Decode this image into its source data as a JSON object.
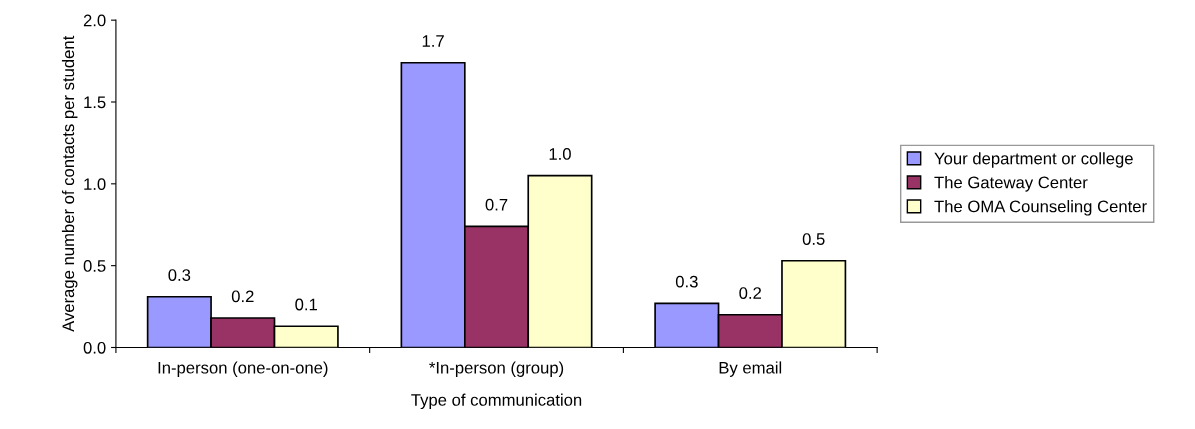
{
  "chart_data": {
    "type": "bar",
    "xlabel": "Type of communication",
    "ylabel": "Average number of contacts per student",
    "categories": [
      "In-person (one-on-one)",
      "*In-person (group)",
      "By email"
    ],
    "series": [
      {
        "name": "Your department or college",
        "color": "#9999ff",
        "values": [
          0.31,
          1.74,
          0.27
        ],
        "value_labels": [
          "0.3",
          "1.7",
          "0.3"
        ]
      },
      {
        "name": "The Gateway Center",
        "color": "#993366",
        "values": [
          0.18,
          0.74,
          0.2
        ],
        "value_labels": [
          "0.2",
          "0.7",
          "0.2"
        ]
      },
      {
        "name": "The OMA Counseling Center",
        "color": "#ffffcc",
        "values": [
          0.13,
          1.05,
          0.53
        ],
        "value_labels": [
          "0.1",
          "1.0",
          "0.5"
        ]
      }
    ],
    "ylim": [
      0,
      2.0
    ],
    "yticks": [
      {
        "value": 0,
        "label": "0.0"
      },
      {
        "value": 0.5,
        "label": "0.5"
      },
      {
        "value": 1.0,
        "label": "1.0"
      },
      {
        "value": 1.5,
        "label": "1.5"
      },
      {
        "value": 2.0,
        "label": "2.0"
      }
    ],
    "grid": false,
    "legend": "right"
  }
}
